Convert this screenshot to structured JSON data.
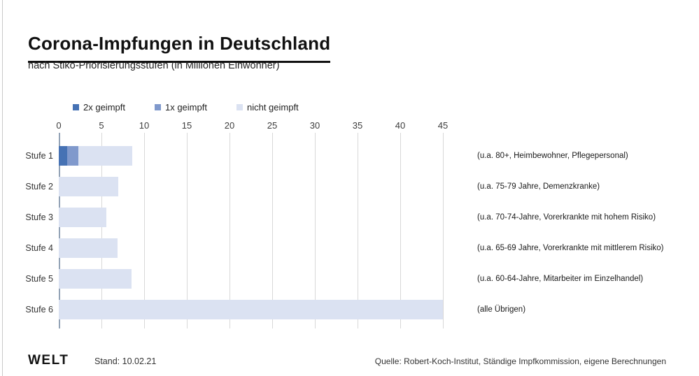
{
  "header": {
    "title": "Corona-Impfungen in Deutschland",
    "subtitle": "nach Stiko-Priorisierungsstufen (in Millionen Einwohner)"
  },
  "legend": [
    {
      "label": "2x geimpft",
      "color": "#4672b4"
    },
    {
      "label": "1x geimpft",
      "color": "#8099cc"
    },
    {
      "label": "nicht geimpft",
      "color": "#dbe2f2"
    }
  ],
  "chart_data": {
    "type": "bar",
    "orientation": "horizontal",
    "stacked": true,
    "title": "Corona-Impfungen in Deutschland",
    "subtitle": "nach Stiko-Priorisierungsstufen (in Millionen Einwohner)",
    "xlabel": "Millionen Einwohner",
    "xlim": [
      0,
      45
    ],
    "xticks": [
      0,
      5,
      10,
      15,
      20,
      25,
      30,
      35,
      40,
      45
    ],
    "grid": true,
    "legend_position": "top",
    "categories": [
      "Stufe 1",
      "Stufe 2",
      "Stufe 3",
      "Stufe 4",
      "Stufe 5",
      "Stufe 6"
    ],
    "series": [
      {
        "name": "2x geimpft",
        "color": "#4672b4",
        "values": [
          1.0,
          0,
          0,
          0,
          0,
          0
        ]
      },
      {
        "name": "1x geimpft",
        "color": "#8099cc",
        "values": [
          1.3,
          0,
          0,
          0,
          0,
          0
        ]
      },
      {
        "name": "nicht geimpft",
        "color": "#dbe2f2",
        "values": [
          6.3,
          7.0,
          5.6,
          6.9,
          8.5,
          45.0
        ]
      }
    ],
    "row_annotations": [
      "(u.a. 80+, Heimbewohner, Pflegepersonal)",
      "(u.a. 75-79 Jahre, Demenzkranke)",
      "(u.a. 70-74-Jahre, Vorerkrankte mit hohem Risiko)",
      "(u.a. 65-69 Jahre, Vorerkrankte mit mittlerem Risiko)",
      "(u.a. 60-64-Jahre, Mitarbeiter im Einzelhandel)",
      "(alle Übrigen)"
    ]
  },
  "footer": {
    "logo": "WELT",
    "stand": "Stand: 10.02.21",
    "source": "Quelle: Robert-Koch-Institut, Ständige Impfkommission, eigene Berechnungen"
  }
}
